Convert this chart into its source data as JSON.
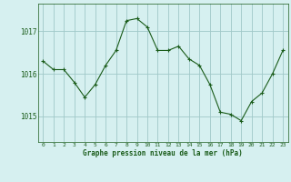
{
  "x": [
    0,
    1,
    2,
    3,
    4,
    5,
    6,
    7,
    8,
    9,
    10,
    11,
    12,
    13,
    14,
    15,
    16,
    17,
    18,
    19,
    20,
    21,
    22,
    23
  ],
  "y": [
    1016.3,
    1016.1,
    1016.1,
    1015.8,
    1015.45,
    1015.75,
    1016.2,
    1016.55,
    1017.25,
    1017.3,
    1017.1,
    1016.55,
    1016.55,
    1016.65,
    1016.35,
    1016.2,
    1015.75,
    1015.1,
    1015.05,
    1014.9,
    1015.35,
    1015.55,
    1016.0,
    1016.55
  ],
  "line_color": "#1a5c1a",
  "marker": "+",
  "bg_color": "#d6f0f0",
  "grid_color": "#a0c8c8",
  "title": "Graphe pression niveau de la mer (hPa)",
  "yticks": [
    1015,
    1016,
    1017
  ],
  "ylim": [
    1014.4,
    1017.65
  ],
  "xlim": [
    -0.5,
    23.5
  ],
  "xticks": [
    0,
    1,
    2,
    3,
    4,
    5,
    6,
    7,
    8,
    9,
    10,
    11,
    12,
    13,
    14,
    15,
    16,
    17,
    18,
    19,
    20,
    21,
    22,
    23
  ]
}
